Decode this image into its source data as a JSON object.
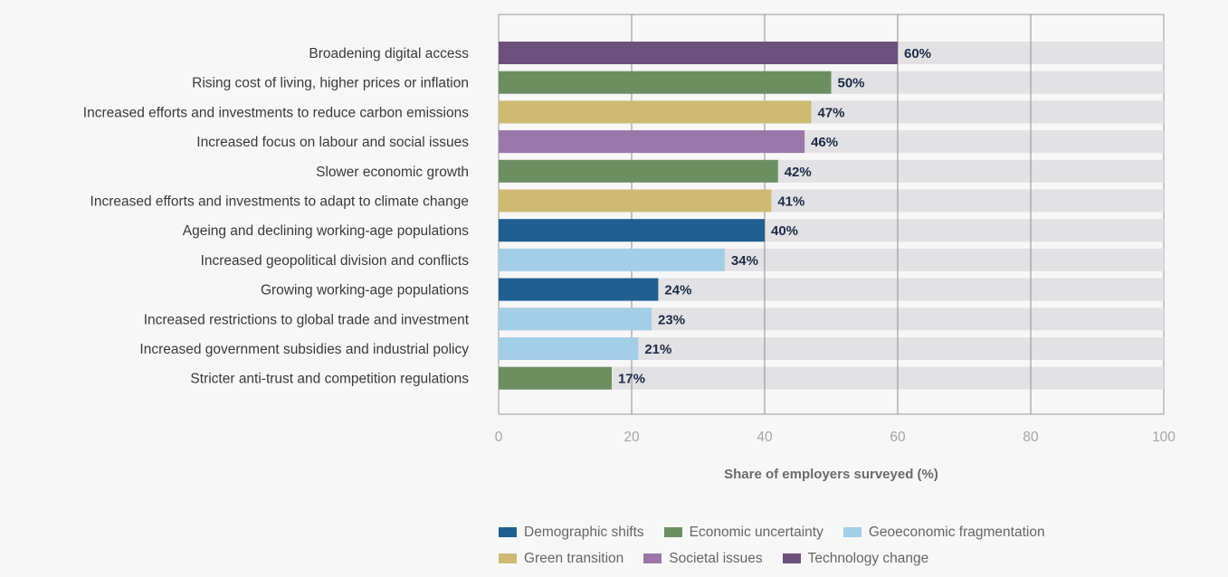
{
  "chart_data": {
    "type": "bar",
    "orientation": "horizontal",
    "xlabel": "Share of employers surveyed (%)",
    "xlim": [
      0,
      100
    ],
    "xticks": [
      0,
      20,
      40,
      60,
      80,
      100
    ],
    "grid": true,
    "legend_position": "bottom",
    "bars": [
      {
        "label": "Broadening digital access",
        "value": 60,
        "value_label": "60%",
        "group": "Technology change"
      },
      {
        "label": "Rising cost of living, higher prices or inflation",
        "value": 50,
        "value_label": "50%",
        "group": "Economic uncertainty"
      },
      {
        "label": "Increased efforts and investments to reduce carbon emissions",
        "value": 47,
        "value_label": "47%",
        "group": "Green transition"
      },
      {
        "label": "Increased focus on labour and social issues",
        "value": 46,
        "value_label": "46%",
        "group": "Societal issues"
      },
      {
        "label": "Slower economic growth",
        "value": 42,
        "value_label": "42%",
        "group": "Economic uncertainty"
      },
      {
        "label": "Increased efforts and investments to adapt to climate change",
        "value": 41,
        "value_label": "41%",
        "group": "Green transition"
      },
      {
        "label": "Ageing and declining working-age populations",
        "value": 40,
        "value_label": "40%",
        "group": "Demographic shifts"
      },
      {
        "label": "Increased geopolitical division and conflicts",
        "value": 34,
        "value_label": "34%",
        "group": "Geoeconomic fragmentation"
      },
      {
        "label": "Growing working-age populations",
        "value": 24,
        "value_label": "24%",
        "group": "Demographic shifts"
      },
      {
        "label": "Increased restrictions to global trade and investment",
        "value": 23,
        "value_label": "23%",
        "group": "Geoeconomic fragmentation"
      },
      {
        "label": "Increased government subsidies and industrial policy",
        "value": 21,
        "value_label": "21%",
        "group": "Geoeconomic fragmentation"
      },
      {
        "label": "Stricter anti-trust and competition regulations",
        "value": 17,
        "value_label": "17%",
        "group": "Economic uncertainty"
      }
    ],
    "groups": [
      {
        "name": "Demographic shifts",
        "color": "#205f8f"
      },
      {
        "name": "Economic uncertainty",
        "color": "#6b8f61"
      },
      {
        "name": "Geoeconomic fragmentation",
        "color": "#a4cde6"
      },
      {
        "name": "Green transition",
        "color": "#cfba74"
      },
      {
        "name": "Societal issues",
        "color": "#9b76a8"
      },
      {
        "name": "Technology change",
        "color": "#6d507d"
      }
    ],
    "track_color": "#e2e2e5"
  }
}
